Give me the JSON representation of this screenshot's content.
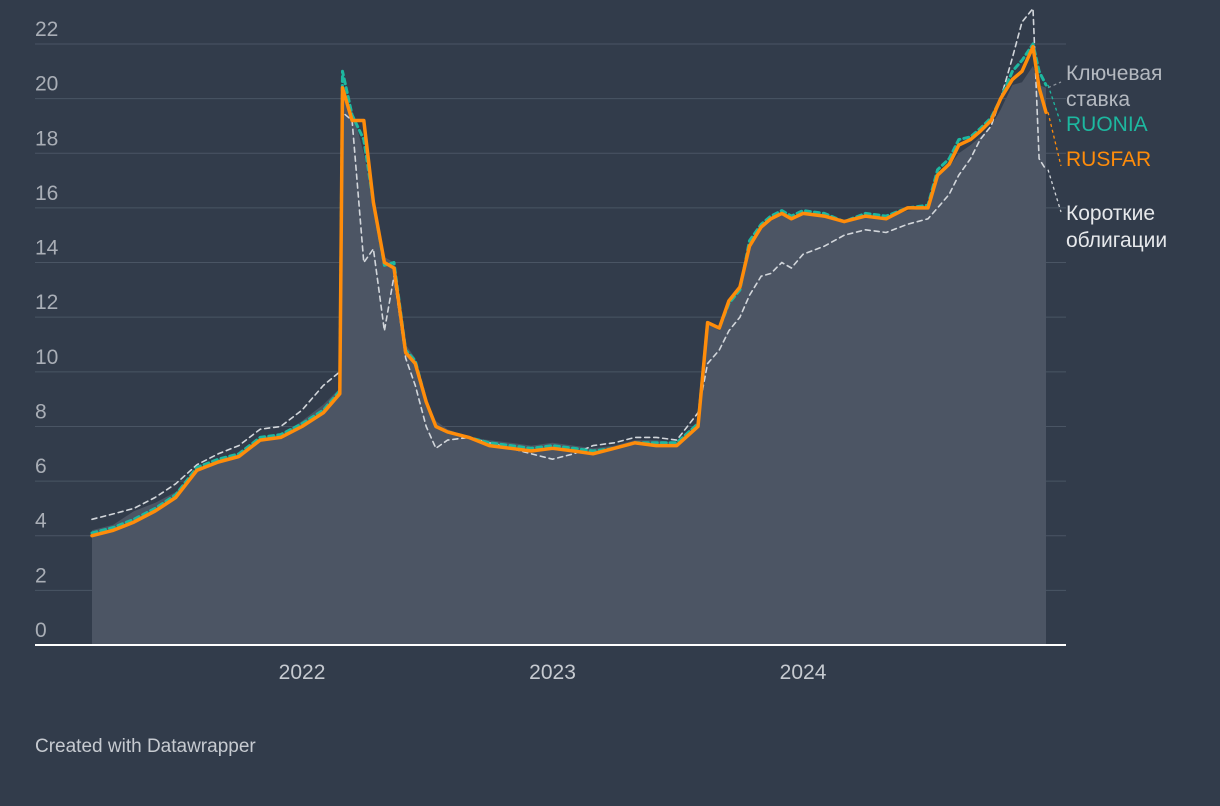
{
  "chart_data": {
    "type": "line",
    "title": "",
    "xlabel": "",
    "ylabel": "",
    "ylim": [
      0,
      22
    ],
    "xlim": [
      "2021-03-01",
      "2024-12-20"
    ],
    "y_ticks": [
      0,
      2,
      4,
      6,
      8,
      10,
      12,
      14,
      16,
      18,
      20,
      22
    ],
    "x_ticks": [
      {
        "label": "2022",
        "date": "2022-01-01"
      },
      {
        "label": "2023",
        "date": "2023-01-01"
      },
      {
        "label": "2024",
        "date": "2024-01-01"
      }
    ],
    "grid": true,
    "legend": "direct labels at right end of lines",
    "x": [
      "2021-03-01",
      "2021-04-01",
      "2021-05-01",
      "2021-06-01",
      "2021-07-01",
      "2021-08-01",
      "2021-09-01",
      "2021-10-01",
      "2021-11-01",
      "2021-12-01",
      "2022-01-01",
      "2022-02-01",
      "2022-02-25",
      "2022-03-01",
      "2022-03-15",
      "2022-04-01",
      "2022-04-15",
      "2022-05-01",
      "2022-05-15",
      "2022-06-01",
      "2022-06-15",
      "2022-07-01",
      "2022-07-15",
      "2022-08-01",
      "2022-09-01",
      "2022-10-01",
      "2022-11-01",
      "2022-12-01",
      "2023-01-01",
      "2023-02-01",
      "2023-03-01",
      "2023-04-01",
      "2023-05-01",
      "2023-06-01",
      "2023-07-01",
      "2023-08-01",
      "2023-08-15",
      "2023-09-01",
      "2023-09-15",
      "2023-10-01",
      "2023-10-15",
      "2023-11-01",
      "2023-11-15",
      "2023-12-01",
      "2023-12-15",
      "2024-01-01",
      "2024-02-01",
      "2024-03-01",
      "2024-04-01",
      "2024-05-01",
      "2024-06-01",
      "2024-07-01",
      "2024-07-15",
      "2024-08-01",
      "2024-08-15",
      "2024-09-01",
      "2024-09-15",
      "2024-10-01",
      "2024-10-15",
      "2024-11-01",
      "2024-11-15",
      "2024-12-01",
      "2024-12-10",
      "2024-12-20"
    ],
    "series": [
      {
        "name": "Ключевая ставка",
        "color": "#e6e8eb",
        "style": "area",
        "values": [
          4.2,
          4.4,
          4.9,
          5.2,
          5.6,
          6.4,
          6.8,
          7.0,
          7.6,
          7.7,
          8.2,
          8.8,
          9.4,
          20.2,
          19.6,
          18.0,
          16.3,
          14.2,
          14.0,
          11.0,
          10.5,
          9.0,
          8.2,
          7.9,
          7.6,
          7.5,
          7.4,
          7.3,
          7.4,
          7.3,
          7.2,
          7.3,
          7.5,
          7.5,
          7.4,
          8.2,
          11.8,
          11.5,
          12.5,
          13.0,
          14.5,
          15.3,
          15.6,
          15.8,
          15.6,
          15.8,
          15.7,
          15.5,
          15.7,
          15.6,
          15.9,
          16.0,
          17.2,
          17.5,
          18.0,
          18.3,
          18.6,
          19.0,
          19.6,
          20.5,
          20.6,
          21.2,
          20.5,
          20.4
        ]
      },
      {
        "name": "RUONIA",
        "color": "#1db8a0",
        "style": "dashed",
        "values": [
          4.1,
          4.3,
          4.6,
          5.0,
          5.5,
          6.5,
          6.8,
          7.0,
          7.6,
          7.7,
          8.1,
          8.6,
          9.3,
          21.0,
          19.4,
          18.5,
          16.2,
          13.9,
          14.0,
          10.8,
          10.4,
          8.9,
          8.0,
          7.8,
          7.6,
          7.4,
          7.3,
          7.2,
          7.3,
          7.2,
          7.1,
          7.2,
          7.4,
          7.4,
          7.4,
          8.1,
          11.8,
          11.6,
          12.5,
          13.0,
          14.8,
          15.4,
          15.7,
          15.9,
          15.7,
          15.9,
          15.8,
          15.5,
          15.8,
          15.7,
          16.0,
          16.1,
          17.4,
          17.8,
          18.5,
          18.6,
          18.9,
          19.3,
          20.0,
          21.0,
          21.4,
          22.0,
          21.0,
          20.5
        ]
      },
      {
        "name": "RUSFAR",
        "color": "#ff8c0a",
        "style": "solid",
        "values": [
          4.0,
          4.2,
          4.5,
          4.9,
          5.4,
          6.4,
          6.7,
          6.9,
          7.5,
          7.6,
          8.0,
          8.5,
          9.2,
          20.4,
          19.2,
          19.2,
          16.2,
          14.0,
          13.8,
          10.7,
          10.3,
          8.9,
          8.0,
          7.8,
          7.6,
          7.3,
          7.2,
          7.1,
          7.2,
          7.1,
          7.0,
          7.2,
          7.4,
          7.3,
          7.3,
          8.0,
          11.8,
          11.6,
          12.6,
          13.1,
          14.6,
          15.3,
          15.6,
          15.8,
          15.6,
          15.8,
          15.7,
          15.5,
          15.7,
          15.6,
          16.0,
          16.0,
          17.2,
          17.6,
          18.3,
          18.5,
          18.8,
          19.2,
          20.0,
          20.7,
          21.0,
          21.9,
          20.4,
          19.5
        ]
      },
      {
        "name": "Короткие облигации",
        "color": "#d2d6db",
        "style": "dashed",
        "values": [
          4.6,
          4.8,
          5.0,
          5.4,
          5.9,
          6.6,
          7.0,
          7.3,
          7.9,
          8.0,
          8.6,
          9.5,
          10.0,
          19.5,
          19.2,
          14.0,
          14.5,
          11.5,
          13.5,
          10.5,
          9.5,
          8.0,
          7.2,
          7.5,
          7.6,
          7.4,
          7.2,
          7.0,
          6.8,
          7.0,
          7.3,
          7.4,
          7.6,
          7.6,
          7.5,
          8.5,
          10.3,
          10.8,
          11.5,
          12.0,
          12.8,
          13.5,
          13.6,
          14.0,
          13.8,
          14.3,
          14.6,
          15.0,
          15.2,
          15.1,
          15.4,
          15.6,
          16.0,
          16.5,
          17.2,
          17.8,
          18.5,
          19.0,
          20.0,
          21.5,
          22.8,
          23.3,
          17.8,
          17.4
        ]
      }
    ],
    "labels": [
      "Ключевая",
      "ставка",
      "RUONIA",
      "RUSFAR",
      "Короткие",
      "облигации"
    ]
  },
  "footer": {
    "credit": "Created with Datawrapper"
  }
}
